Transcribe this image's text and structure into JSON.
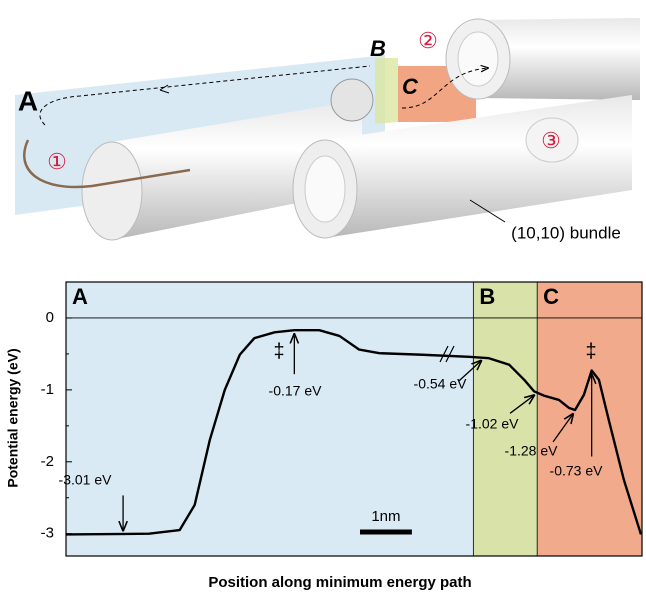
{
  "illustration": {
    "labels": [
      "A",
      "B",
      "C",
      "①",
      "②",
      "③",
      "(10,10) bundle"
    ]
  },
  "chart_data": {
    "type": "line",
    "ylabel": "Potential energy (eV)",
    "xlabel": "Position along minimum energy path",
    "xlim": [
      0,
      11.1
    ],
    "ylim": [
      -3.31,
      0.5
    ],
    "yticks": [
      0,
      -1,
      -2,
      -3
    ],
    "x": [
      0,
      1.6,
      2.19,
      2.48,
      2.77,
      3.06,
      3.35,
      3.63,
      4.02,
      4.4,
      4.88,
      5.27,
      5.65,
      6.04,
      6.81,
      7.77,
      8.15,
      8.54,
      8.83,
      9.02,
      9.21,
      9.5,
      9.69,
      9.81,
      9.98,
      10.13,
      10.27,
      10.46,
      10.75,
      11.08
    ],
    "series": [
      {
        "color": "#000000",
        "values": [
          -3.01,
          -3.0,
          -2.95,
          -2.6,
          -1.7,
          -1.0,
          -0.51,
          -0.28,
          -0.2,
          -0.17,
          -0.17,
          -0.25,
          -0.44,
          -0.49,
          -0.51,
          -0.54,
          -0.56,
          -0.65,
          -0.86,
          -1.02,
          -1.08,
          -1.14,
          -1.25,
          -1.28,
          -1.07,
          -0.73,
          -0.86,
          -1.42,
          -2.25,
          -3.01
        ]
      }
    ],
    "regions": [
      {
        "label": "A",
        "start": 0,
        "end": 7.85,
        "color": "#daeaf5"
      },
      {
        "label": "B",
        "start": 7.85,
        "end": 9.08,
        "color": "#d9e3a9"
      },
      {
        "label": "C",
        "start": 9.08,
        "end": 11.1,
        "color": "#f1ab8c"
      }
    ],
    "annotations": [
      {
        "x": 1.1,
        "y": -3.01,
        "label": "-3.01 eV"
      },
      {
        "x": 4.4,
        "y": -0.17,
        "label": "-0.17 eV"
      },
      {
        "x": 8.0,
        "y": -0.54,
        "label": "-0.54 eV"
      },
      {
        "x": 9.02,
        "y": -1.02,
        "label": "-1.02 eV"
      },
      {
        "x": 9.77,
        "y": -1.28,
        "label": "-1.28 eV"
      },
      {
        "x": 10.13,
        "y": -0.73,
        "label": "-0.73 eV"
      }
    ],
    "transition_state_symbols": [
      "‡",
      "‡"
    ],
    "scale_bar": {
      "label": "1nm",
      "length": 1
    }
  }
}
